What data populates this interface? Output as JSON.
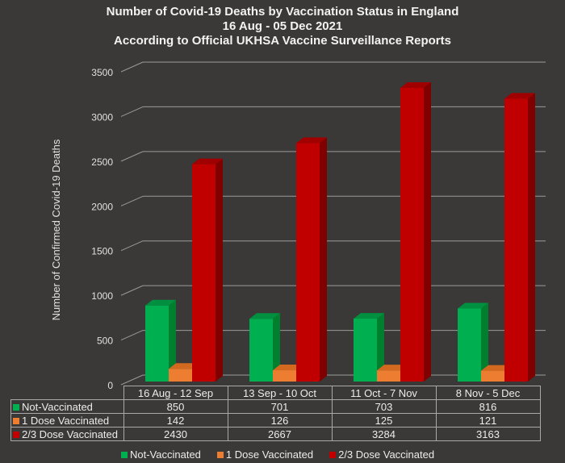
{
  "chart_data": {
    "type": "bar",
    "style": "3d-clustered",
    "title": "Number of Covid-19 Deaths by Vaccination Status in England",
    "subtitle_lines": [
      "16 Aug - 05 Dec 2021",
      "According to Official UKHSA Vaccine Surveillance Reports"
    ],
    "xlabel": "",
    "ylabel": "Number of Confirmed Covid-19 Deaths",
    "ylim": [
      0,
      3500
    ],
    "yticks": [
      "0",
      "500",
      "1000",
      "1500",
      "2000",
      "2500",
      "3000",
      "3500"
    ],
    "ytick_values": [
      0,
      500,
      1000,
      1500,
      2000,
      2500,
      3000,
      3500
    ],
    "grid": true,
    "categories": [
      "16 Aug - 12 Sep",
      "13 Sep - 10 Oct",
      "11 Oct - 7 Nov",
      "8 Nov - 5 Dec"
    ],
    "series": [
      {
        "name": "Not-Vaccinated",
        "values": [
          850,
          701,
          703,
          816
        ],
        "color": "#00b050",
        "side_color": "#00802f",
        "top_color": "#009040"
      },
      {
        "name": "1 Dose Vaccinated",
        "values": [
          142,
          126,
          125,
          121
        ],
        "color": "#ed7d31",
        "side_color": "#b85e22",
        "top_color": "#d2691e"
      },
      {
        "name": "2/3 Dose Vaccinated",
        "values": [
          2430,
          2667,
          3284,
          3163
        ],
        "color": "#c00000",
        "side_color": "#800000",
        "top_color": "#a00000"
      }
    ],
    "data_table": true,
    "legend_position": "bottom"
  }
}
